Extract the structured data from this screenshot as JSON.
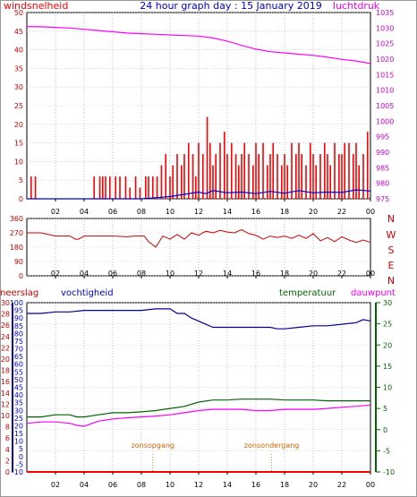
{
  "chart_data": [
    {
      "type": "line",
      "title": "24 hour graph day : 15 January 2019",
      "left_axis_label": "windsnelheid",
      "right_axis_label": "luchtdruk",
      "x_ticks": [
        "02",
        "04",
        "06",
        "08",
        "10",
        "12",
        "14",
        "16",
        "18",
        "20",
        "22",
        "00"
      ],
      "left_axis": {
        "ticks": [
          0,
          5,
          10,
          15,
          20,
          25,
          30,
          35,
          40,
          45,
          50
        ],
        "range": [
          0,
          50
        ]
      },
      "right_axis": {
        "ticks": [
          975,
          980,
          985,
          990,
          995,
          1000,
          1005,
          1010,
          1015,
          1020,
          1025,
          1030,
          1035
        ],
        "range": [
          975,
          1035
        ]
      },
      "series": [
        {
          "color": "#ff00ff",
          "axis": "right",
          "x": [
            0,
            1,
            2,
            3,
            4,
            5,
            6,
            7,
            8,
            9,
            10,
            11,
            12,
            13,
            14,
            15,
            16,
            17,
            18,
            19,
            20,
            21,
            22,
            23,
            24
          ],
          "y": [
            1030.5,
            1030.4,
            1030.2,
            1030,
            1029.6,
            1029.2,
            1028.8,
            1028.4,
            1028.2,
            1028,
            1027.8,
            1027.6,
            1027.4,
            1026.8,
            1025.8,
            1024.4,
            1023.2,
            1022.4,
            1022,
            1021.6,
            1021.2,
            1020.6,
            1019.9,
            1019.4,
            1018.6
          ]
        },
        {
          "color": "#ff0000",
          "axis": "left",
          "type": "bar",
          "x": [
            0.3,
            0.6,
            4.7,
            5.1,
            5.3,
            5.5,
            5.8,
            6.2,
            6.5,
            6.9,
            7.2,
            7.6,
            7.9,
            8.3,
            8.5,
            8.8,
            9.1,
            9.4,
            9.7,
            10,
            10.2,
            10.5,
            10.8,
            11,
            11.3,
            11.6,
            11.8,
            12,
            12.3,
            12.6,
            12.8,
            13,
            13.2,
            13.5,
            13.8,
            14,
            14.3,
            14.6,
            14.8,
            15,
            15.2,
            15.5,
            15.8,
            16,
            16.2,
            16.5,
            16.8,
            17,
            17.2,
            17.5,
            17.8,
            18,
            18.2,
            18.5,
            18.8,
            19,
            19.2,
            19.5,
            19.8,
            20,
            20.2,
            20.5,
            20.8,
            21,
            21.2,
            21.5,
            21.8,
            22,
            22.2,
            22.5,
            22.8,
            23,
            23.2,
            23.5,
            23.8
          ],
          "y": [
            6,
            6,
            6,
            6,
            6,
            6,
            6,
            6,
            6,
            6,
            3,
            6,
            3,
            6,
            6,
            6,
            6,
            9,
            12,
            6,
            9,
            12,
            9,
            12,
            15,
            12,
            6,
            15,
            12,
            22,
            15,
            9,
            12,
            15,
            18,
            12,
            15,
            12,
            9,
            12,
            15,
            12,
            9,
            15,
            12,
            15,
            9,
            12,
            15,
            12,
            9,
            12,
            9,
            15,
            12,
            15,
            12,
            9,
            15,
            12,
            9,
            12,
            15,
            12,
            9,
            15,
            12,
            12,
            15,
            15,
            12,
            15,
            9,
            12,
            18
          ]
        },
        {
          "color": "#0000cc",
          "axis": "left",
          "x": [
            0,
            8,
            9,
            10,
            11,
            12,
            12.5,
            13,
            14,
            15,
            16,
            17,
            18,
            19,
            20,
            21,
            22,
            23,
            24
          ],
          "y": [
            0,
            0,
            0.3,
            0.6,
            1.2,
            1.8,
            1.4,
            2.2,
            1.6,
            1.8,
            1.4,
            2,
            1.5,
            2.2,
            1.6,
            1.8,
            1.7,
            2.4,
            2.1
          ]
        }
      ]
    },
    {
      "type": "line",
      "left_axis": {
        "ticks": [
          0,
          90,
          180,
          270,
          360
        ],
        "range": [
          0,
          360
        ]
      },
      "right_axis_labels": [
        "N",
        "W",
        "S",
        "E",
        "N"
      ],
      "x_ticks": [
        "02",
        "04",
        "06",
        "08",
        "10",
        "12",
        "14",
        "16",
        "18",
        "20",
        "22",
        "00"
      ],
      "series": [
        {
          "color": "#cc0000",
          "x": [
            0,
            1,
            2,
            3,
            3.4,
            3.6,
            4,
            5,
            6,
            7,
            7.5,
            7.8,
            8.2,
            8.5,
            9,
            9.5,
            10,
            10.5,
            11,
            11.5,
            12,
            12.5,
            13,
            13.5,
            14,
            14.5,
            15,
            15.5,
            16,
            16.5,
            17,
            17.5,
            18,
            18.5,
            19,
            19.5,
            20,
            20.5,
            21,
            21.5,
            22,
            22.5,
            23,
            23.5,
            24
          ],
          "y": [
            270,
            270,
            250,
            250,
            230,
            230,
            250,
            250,
            250,
            245,
            250,
            250,
            250,
            215,
            180,
            250,
            230,
            260,
            230,
            270,
            255,
            280,
            270,
            285,
            275,
            270,
            290,
            265,
            255,
            230,
            250,
            240,
            250,
            235,
            255,
            235,
            265,
            220,
            240,
            215,
            245,
            225,
            210,
            225,
            210
          ]
        }
      ]
    },
    {
      "type": "line",
      "left_axis_label": "neerslag",
      "left_axis2_label": "vochtigheid",
      "right_axis_label": "temperatuur",
      "right_axis2_label": "dauwpunt",
      "x_ticks": [
        "02",
        "04",
        "06",
        "08",
        "10",
        "12",
        "14",
        "16",
        "18",
        "20",
        "22",
        "00"
      ],
      "neerslag_axis": {
        "ticks": [
          0,
          2,
          4,
          6,
          8,
          10,
          12,
          14,
          16,
          18,
          20,
          22,
          24,
          26,
          28,
          30
        ],
        "range": [
          0,
          30
        ]
      },
      "vochtigheid_axis": {
        "ticks": [
          -10,
          -5,
          0,
          5,
          10,
          15,
          20,
          25,
          30,
          35,
          40,
          45,
          50,
          55,
          60,
          65,
          70,
          75,
          80,
          85,
          90,
          95,
          100
        ],
        "range": [
          -10,
          100
        ]
      },
      "temperatuur_axis": {
        "ticks": [
          -10,
          -5,
          0,
          5,
          10,
          15,
          20,
          25,
          30
        ],
        "range": [
          -10,
          30
        ]
      },
      "annotations": [
        {
          "label": "zonsopgang",
          "x": 8.8
        },
        {
          "label": "zonsondergang",
          "x": 17.1
        }
      ],
      "series": [
        {
          "color": "#000099",
          "axis": "vochtigheid",
          "x": [
            0,
            1,
            2,
            3,
            4,
            5,
            6,
            7,
            8,
            9,
            10,
            10.5,
            11,
            11.5,
            12,
            12.5,
            13,
            14,
            15,
            16,
            17,
            17.5,
            18,
            19,
            20,
            21,
            22,
            23,
            23.5,
            24
          ],
          "y": [
            93,
            93,
            94,
            94,
            95,
            95,
            95,
            95,
            95,
            96,
            96,
            93,
            93,
            90,
            88,
            86,
            84,
            84,
            84,
            84,
            84,
            83,
            83,
            84,
            85,
            85,
            86,
            87,
            89,
            88
          ]
        },
        {
          "color": "#006600",
          "axis": "temperatuur",
          "x": [
            0,
            1,
            2,
            3,
            3.5,
            4,
            5,
            6,
            7,
            8,
            9,
            10,
            11,
            12,
            13,
            14,
            15,
            16,
            17,
            18,
            19,
            20,
            21,
            22,
            23,
            24
          ],
          "y": [
            3,
            3,
            3.5,
            3.5,
            3,
            3,
            3.5,
            4,
            4,
            4.2,
            4.5,
            5,
            5.5,
            6.5,
            7,
            7,
            7.2,
            7.2,
            7.2,
            7,
            7,
            7,
            6.8,
            6.8,
            6.8,
            6.8
          ]
        },
        {
          "color": "#ff00ff",
          "axis": "temperatuur",
          "x": [
            0,
            1,
            2,
            3,
            3.5,
            4,
            5,
            6,
            7,
            8,
            9,
            10,
            11,
            12,
            13,
            14,
            15,
            16,
            17,
            18,
            19,
            20,
            21,
            22,
            23,
            24
          ],
          "y": [
            1.5,
            1.8,
            1.8,
            1.5,
            1,
            0.8,
            2,
            2.5,
            2.8,
            3,
            3.2,
            3.5,
            4,
            4.5,
            4.8,
            4.8,
            4.8,
            4.5,
            4.5,
            4.8,
            4.8,
            4.8,
            5,
            5.3,
            5.5,
            5.8
          ]
        },
        {
          "color": "#ff0000",
          "axis": "neerslag",
          "x": [
            0,
            4,
            8,
            12,
            16,
            20,
            24
          ],
          "y": [
            0,
            0,
            0,
            0,
            0,
            0,
            0
          ]
        }
      ]
    }
  ]
}
